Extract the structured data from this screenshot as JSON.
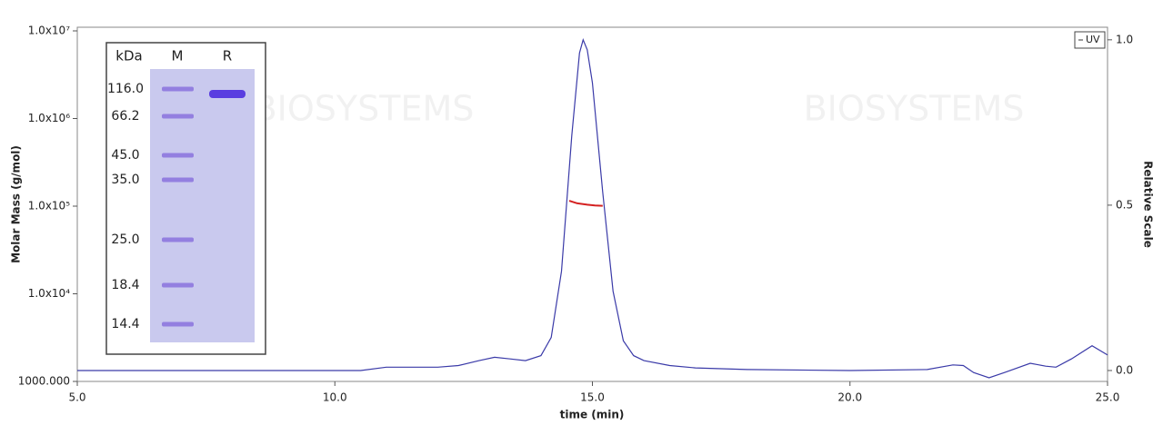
{
  "chart_data": {
    "type": "line",
    "xlabel": "time (min)",
    "ylabel": "Molar Mass (g/mol)",
    "y2label": "Relative Scale",
    "xlim": [
      5,
      25
    ],
    "xticks": [
      {
        "value": 5,
        "label": "5.0"
      },
      {
        "value": 10,
        "label": "10.0"
      },
      {
        "value": 15,
        "label": "15.0"
      },
      {
        "value": 20,
        "label": "20.0"
      },
      {
        "value": 25,
        "label": "25.0"
      }
    ],
    "ylim": [
      1000,
      11000000
    ],
    "yscale": "log",
    "yticks": [
      {
        "value": 1000,
        "label": "1000.000"
      },
      {
        "value": 10000,
        "label": "1.0x10⁴"
      },
      {
        "value": 100000,
        "label": "1.0x10⁵"
      },
      {
        "value": 1000000,
        "label": "1.0x10⁶"
      },
      {
        "value": 10000000,
        "label": "1.0x10⁷"
      }
    ],
    "y2lim": [
      -0.033,
      1.038
    ],
    "y2ticks": [
      {
        "value": 0,
        "label": "0.0"
      },
      {
        "value": 0.5,
        "label": "0.5"
      },
      {
        "value": 1,
        "label": "1.0"
      }
    ],
    "legend": "top-right",
    "series": [
      {
        "name": "UV",
        "color": "#3a3aa8",
        "axis": "y2",
        "x": [
          5.0,
          10.0,
          10.5,
          11.0,
          11.5,
          12.0,
          12.4,
          12.8,
          13.1,
          13.4,
          13.7,
          14.0,
          14.2,
          14.4,
          14.6,
          14.75,
          14.82,
          14.9,
          15.0,
          15.2,
          15.4,
          15.6,
          15.8,
          16.0,
          16.5,
          17.0,
          18.0,
          20.0,
          21.5,
          22.0,
          22.2,
          22.4,
          22.7,
          23.0,
          23.5,
          23.8,
          24.0,
          24.3,
          24.7,
          25.0
        ],
        "values": [
          0.0,
          0.0,
          0.0,
          0.01,
          0.01,
          0.01,
          0.015,
          0.03,
          0.04,
          0.035,
          0.03,
          0.045,
          0.1,
          0.3,
          0.71,
          0.96,
          1.0,
          0.97,
          0.87,
          0.54,
          0.24,
          0.09,
          0.045,
          0.03,
          0.015,
          0.008,
          0.003,
          0.0,
          0.003,
          0.017,
          0.015,
          -0.006,
          -0.022,
          -0.006,
          0.022,
          0.013,
          0.01,
          0.035,
          0.075,
          0.047
        ]
      },
      {
        "color": "#d42020",
        "x": [
          14.55,
          14.7,
          14.9,
          15.05,
          15.2
        ],
        "values": [
          115000,
          108000,
          104000,
          102000,
          101000
        ]
      }
    ],
    "inset": {
      "headers": [
        "kDa",
        "M",
        "R"
      ],
      "markers": [
        "116.0",
        "66.2",
        "45.0",
        "35.0",
        "25.0",
        "18.4",
        "14.4"
      ]
    },
    "watermark": [
      "BIOSYSTEMS",
      "BIOSYSTEMS"
    ]
  }
}
